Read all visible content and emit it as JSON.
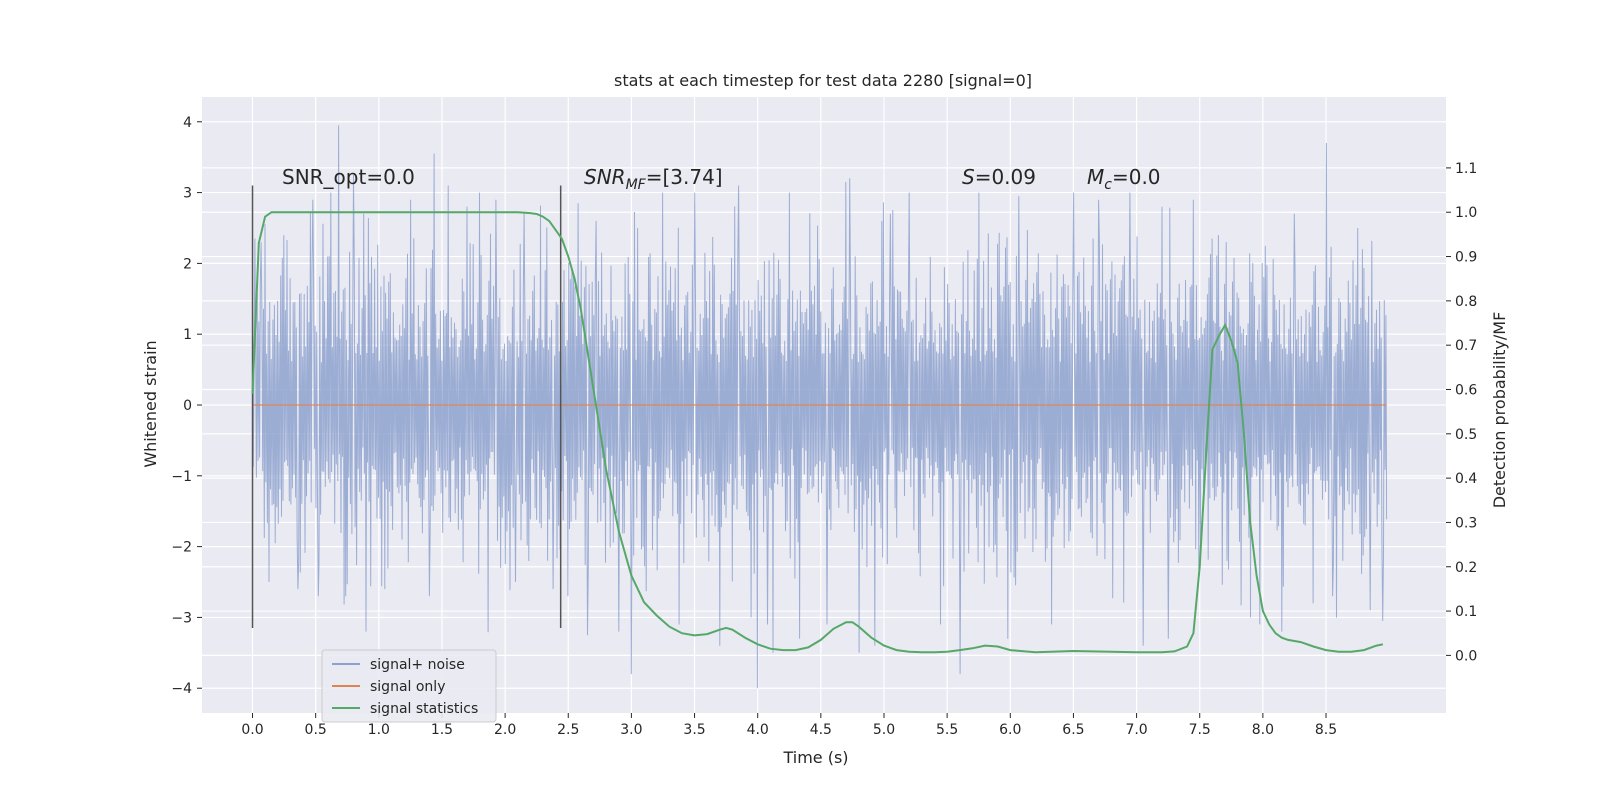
{
  "chart_data": {
    "type": "line",
    "title": "stats at each timestep for test data 2280 [signal=0]",
    "xlabel": "Time (s)",
    "ylabel": "Whitened strain",
    "y2label": "Detection probability/MF",
    "xlim": [
      -0.4,
      9.45
    ],
    "ylim": [
      -4.35,
      4.35
    ],
    "y2lim": [
      -0.13,
      1.26
    ],
    "xticks": [
      "0.0",
      "0.5",
      "1.0",
      "1.5",
      "2.0",
      "2.5",
      "3.0",
      "3.5",
      "4.0",
      "4.5",
      "5.0",
      "5.5",
      "6.0",
      "6.5",
      "7.0",
      "7.5",
      "8.0",
      "8.5"
    ],
    "yticks": [
      "4",
      "3",
      "2",
      "1",
      "0",
      "−1",
      "−2",
      "−3",
      "−4"
    ],
    "y2ticks": [
      "1.1",
      "1.0",
      "0.9",
      "0.8",
      "0.7",
      "0.6",
      "0.5",
      "0.4",
      "0.3",
      "0.2",
      "0.1",
      "0.0"
    ],
    "grid": true,
    "legend_position": "lower-left",
    "legend": [
      "signal+ noise",
      "signal only",
      "signal statistics"
    ],
    "colors": {
      "noise": "#8ea2cf",
      "signal": "#dd8452",
      "stats": "#55a868",
      "background": "#eaeaf2",
      "grid": "#ffffff",
      "vline": "#555555"
    },
    "annotations": {
      "snr_opt": "SNR_opt=0.0",
      "snr_mf_pre": "SNR",
      "snr_mf_sub": "MF",
      "snr_mf_post": "=[3.74]",
      "s_pre": "S",
      "s_post": "=0.09",
      "mc_pre": "M",
      "mc_sub": "c",
      "mc_post": "=0.0"
    },
    "vlines": [
      0.0,
      2.44
    ],
    "series": [
      {
        "name": "signal statistics",
        "x": [
          0.0,
          0.05,
          0.1,
          0.15,
          0.2,
          0.3,
          0.5,
          1.0,
          1.5,
          2.0,
          2.1,
          2.2,
          2.25,
          2.3,
          2.35,
          2.4,
          2.45,
          2.5,
          2.55,
          2.6,
          2.7,
          2.8,
          2.9,
          3.0,
          3.1,
          3.2,
          3.3,
          3.4,
          3.5,
          3.6,
          3.7,
          3.75,
          3.8,
          3.9,
          4.0,
          4.1,
          4.2,
          4.3,
          4.4,
          4.5,
          4.6,
          4.7,
          4.75,
          4.8,
          4.9,
          5.0,
          5.1,
          5.2,
          5.3,
          5.4,
          5.5,
          5.6,
          5.7,
          5.8,
          5.9,
          6.0,
          6.2,
          6.5,
          7.0,
          7.2,
          7.3,
          7.4,
          7.45,
          7.5,
          7.55,
          7.6,
          7.65,
          7.7,
          7.75,
          7.8,
          7.85,
          7.9,
          7.95,
          8.0,
          8.05,
          8.1,
          8.15,
          8.2,
          8.3,
          8.4,
          8.5,
          8.6,
          8.7,
          8.8,
          8.9,
          8.95
        ],
        "values": [
          0.59,
          0.93,
          0.99,
          1.0,
          1.0,
          1.0,
          1.0,
          1.0,
          1.0,
          1.0,
          1.0,
          0.998,
          0.996,
          0.99,
          0.98,
          0.96,
          0.94,
          0.9,
          0.85,
          0.78,
          0.6,
          0.42,
          0.28,
          0.18,
          0.12,
          0.09,
          0.065,
          0.05,
          0.045,
          0.048,
          0.058,
          0.062,
          0.058,
          0.04,
          0.025,
          0.015,
          0.012,
          0.012,
          0.018,
          0.035,
          0.06,
          0.075,
          0.075,
          0.065,
          0.04,
          0.022,
          0.012,
          0.008,
          0.007,
          0.007,
          0.008,
          0.012,
          0.016,
          0.022,
          0.02,
          0.012,
          0.007,
          0.01,
          0.007,
          0.007,
          0.009,
          0.02,
          0.05,
          0.2,
          0.45,
          0.69,
          0.72,
          0.745,
          0.71,
          0.66,
          0.5,
          0.3,
          0.18,
          0.1,
          0.07,
          0.05,
          0.04,
          0.035,
          0.03,
          0.02,
          0.012,
          0.008,
          0.008,
          0.012,
          0.022,
          0.025
        ]
      },
      {
        "name": "signal only",
        "x": [
          0.0,
          8.98
        ],
        "values": [
          0.0,
          0.0
        ]
      }
    ],
    "noise_series": {
      "name": "signal+ noise",
      "x_start": 0.0,
      "x_end": 8.98,
      "samples": 1450,
      "band_upper_typical": 1.2,
      "band_lower_typical": -1.2,
      "spikes": [
        [
          0.02,
          2.35
        ],
        [
          0.07,
          2.3
        ],
        [
          0.13,
          -2.5
        ],
        [
          0.25,
          2.4
        ],
        [
          0.36,
          -2.6
        ],
        [
          0.48,
          2.9
        ],
        [
          0.52,
          -2.7
        ],
        [
          0.62,
          3.0
        ],
        [
          0.68,
          3.95
        ],
        [
          0.74,
          -2.7
        ],
        [
          0.8,
          3.25
        ],
        [
          0.88,
          2.7
        ],
        [
          0.9,
          -3.2
        ],
        [
          1.05,
          -2.6
        ],
        [
          1.25,
          2.9
        ],
        [
          1.4,
          -2.7
        ],
        [
          1.44,
          3.55
        ],
        [
          1.55,
          3.1
        ],
        [
          1.7,
          2.8
        ],
        [
          1.8,
          3.0
        ],
        [
          1.93,
          2.9
        ],
        [
          2.08,
          -2.5
        ],
        [
          2.15,
          2.7
        ],
        [
          2.38,
          -2.6
        ],
        [
          2.5,
          -2.7
        ],
        [
          2.58,
          2.85
        ],
        [
          2.65,
          -3.25
        ],
        [
          2.72,
          2.6
        ],
        [
          2.9,
          -3.2
        ],
        [
          3.0,
          -3.8
        ],
        [
          3.05,
          2.5
        ],
        [
          3.25,
          3.0
        ],
        [
          3.38,
          -3.1
        ],
        [
          3.5,
          3.0
        ],
        [
          3.7,
          -3.4
        ],
        [
          3.85,
          3.1
        ],
        [
          3.95,
          -3.0
        ],
        [
          4.0,
          -4.0
        ],
        [
          4.08,
          -3.1
        ],
        [
          4.12,
          -3.5
        ],
        [
          4.25,
          3.0
        ],
        [
          4.33,
          -3.3
        ],
        [
          4.55,
          -3.1
        ],
        [
          4.7,
          3.15
        ],
        [
          4.73,
          3.2
        ],
        [
          4.8,
          -3.5
        ],
        [
          4.93,
          -3.4
        ],
        [
          5.05,
          2.7
        ],
        [
          5.2,
          3.0
        ],
        [
          5.45,
          -3.1
        ],
        [
          5.6,
          -3.8
        ],
        [
          5.75,
          3.0
        ],
        [
          5.98,
          -3.3
        ],
        [
          6.07,
          2.95
        ],
        [
          6.33,
          -3.1
        ],
        [
          6.5,
          3.0
        ],
        [
          6.7,
          2.9
        ],
        [
          6.95,
          3.0
        ],
        [
          7.05,
          -3.4
        ],
        [
          7.2,
          2.8
        ],
        [
          7.25,
          -3.3
        ],
        [
          7.45,
          2.9
        ],
        [
          7.65,
          2.4
        ],
        [
          7.9,
          -3.0
        ],
        [
          8.15,
          -3.2
        ],
        [
          8.25,
          2.7
        ],
        [
          8.4,
          -2.8
        ],
        [
          8.5,
          3.7
        ],
        [
          8.55,
          -2.7
        ],
        [
          8.75,
          2.5
        ],
        [
          8.85,
          -2.9
        ],
        [
          8.95,
          -3.05
        ]
      ]
    }
  }
}
